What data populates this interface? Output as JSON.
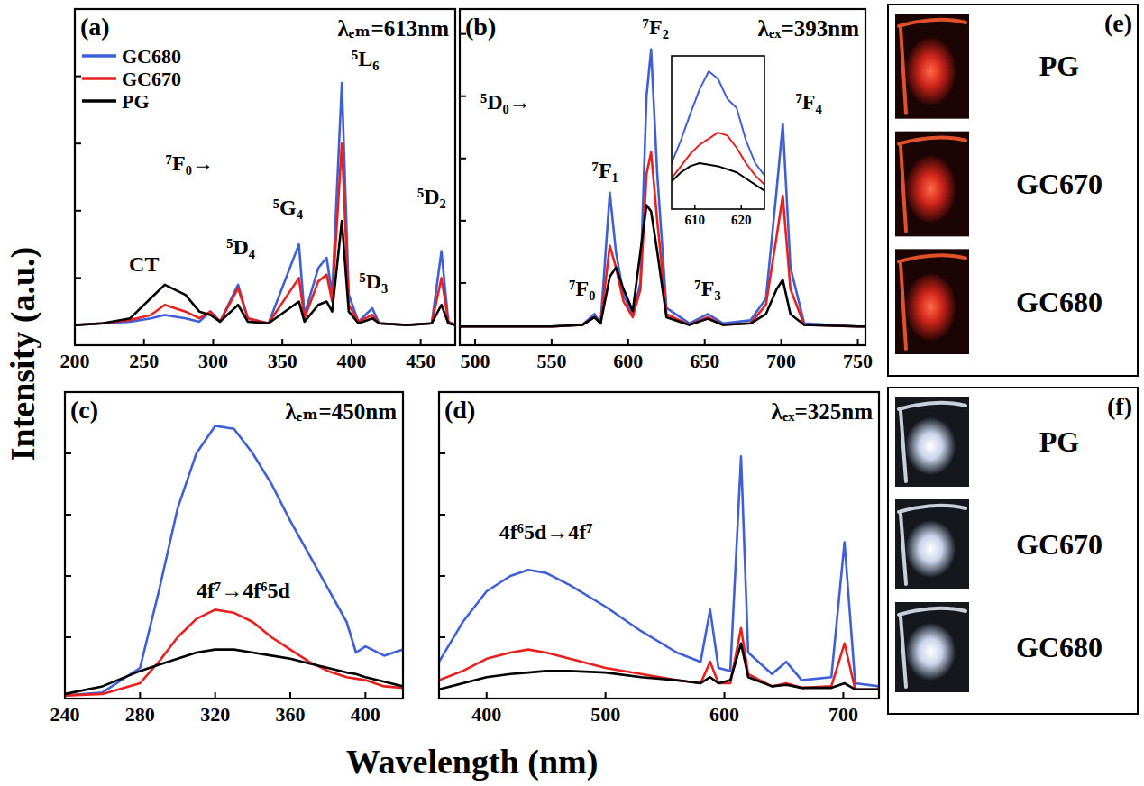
{
  "figure": {
    "ylabel": "Intensity (a.u.)",
    "xlabel": "Wavelength (nm)"
  },
  "chart_data": [
    {
      "type": "line",
      "title": "(a)",
      "subtitle": "λₑₘ=613nm",
      "x": [
        200,
        220,
        240,
        255,
        265,
        280,
        290,
        298,
        305,
        318,
        325,
        340,
        362,
        366,
        376,
        382,
        386,
        393,
        398,
        405,
        415,
        420,
        440,
        458,
        465,
        470,
        475
      ],
      "series": [
        {
          "name": "GC680",
          "color": "#3f5fd8",
          "values": [
            6,
            6.5,
            7,
            8,
            9,
            8,
            7,
            10,
            7,
            18,
            8,
            6.5,
            30,
            9,
            23,
            26,
            15,
            78,
            15,
            7,
            11,
            6.5,
            6,
            6.5,
            28,
            7,
            6
          ]
        },
        {
          "name": "GC670",
          "color": "#e8201e",
          "values": [
            6,
            6.5,
            7.5,
            9,
            12,
            10,
            8,
            10,
            7,
            17,
            8,
            6.5,
            20,
            8,
            19,
            21,
            13,
            60,
            12,
            7,
            9,
            6.5,
            6,
            6.5,
            20,
            7,
            6
          ]
        },
        {
          "name": "PG",
          "color": "#000000",
          "values": [
            6,
            6.5,
            8,
            14,
            18,
            15,
            10,
            9,
            7,
            12,
            7,
            6.5,
            13,
            7,
            12,
            13,
            10,
            37,
            10,
            6.5,
            8,
            6.5,
            6,
            6.5,
            12,
            6.5,
            6
          ]
        }
      ],
      "xlim": [
        200,
        475
      ],
      "xticks": [
        200,
        250,
        300,
        350,
        400,
        450
      ],
      "ylim": [
        0,
        100
      ],
      "yticks": [
        0,
        20,
        40,
        60,
        80,
        100
      ],
      "tick_labels": "x",
      "legend": "upper left",
      "annotations": [
        {
          "text": "CT",
          "x": 250,
          "y": 22
        },
        {
          "text": "⁷F₀→",
          "x": 283,
          "y": 52
        },
        {
          "text": "⁵D₄",
          "x": 320,
          "y": 27
        },
        {
          "text": "⁵G₄",
          "x": 354,
          "y": 39
        },
        {
          "text": "⁵L₆",
          "x": 410,
          "y": 83
        },
        {
          "text": "⁵D₃",
          "x": 416,
          "y": 17
        },
        {
          "text": "⁵D₂",
          "x": 458,
          "y": 42
        }
      ]
    },
    {
      "type": "line",
      "title": "(b)",
      "subtitle": "λₑₓ=393nm",
      "x": [
        490,
        500,
        550,
        570,
        578,
        582,
        588,
        592,
        597,
        603,
        608,
        612,
        615,
        619,
        625,
        640,
        652,
        662,
        680,
        690,
        697,
        701,
        706,
        715,
        750,
        755
      ],
      "series": [
        {
          "name": "GC680",
          "color": "#3f5fd8",
          "values": [
            6,
            6,
            6,
            6.5,
            10,
            7,
            49,
            30,
            16,
            10,
            20,
            80,
            95,
            55,
            12,
            7,
            10,
            7,
            8,
            15,
            50,
            71,
            25,
            7,
            6,
            6
          ]
        },
        {
          "name": "GC670",
          "color": "#e8201e",
          "values": [
            6,
            6,
            6,
            6.5,
            9,
            7,
            32,
            25,
            14,
            9,
            18,
            55,
            62,
            40,
            10,
            6.5,
            9,
            6.5,
            7,
            13,
            35,
            48,
            18,
            6.5,
            6,
            6
          ]
        },
        {
          "name": "PG",
          "color": "#000000",
          "values": [
            6,
            6,
            6,
            6.5,
            9,
            7,
            22,
            25,
            18,
            11,
            30,
            45,
            43,
            30,
            9,
            6.5,
            8.5,
            6.5,
            7,
            10,
            18,
            21,
            10,
            6.5,
            6,
            6
          ]
        }
      ],
      "xlim": [
        490,
        755
      ],
      "xticks": [
        500,
        550,
        600,
        650,
        700,
        750
      ],
      "ylim": [
        0,
        108
      ],
      "yticks": [
        0,
        20,
        40,
        60,
        80,
        100
      ],
      "tick_labels": "x",
      "annotations": [
        {
          "text": "⁵D₀→",
          "x": 520,
          "y": 76
        },
        {
          "text": "⁷F₀",
          "x": 570,
          "y": 16
        },
        {
          "text": "⁷F₁",
          "x": 585,
          "y": 54
        },
        {
          "text": "⁷F₂",
          "x": 618,
          "y": 100
        },
        {
          "text": "⁷F₃",
          "x": 652,
          "y": 16
        },
        {
          "text": "⁷F₄",
          "x": 718,
          "y": 76
        }
      ],
      "inset": {
        "x": [
          605,
          607,
          609,
          611,
          613,
          615,
          617,
          619,
          621,
          623,
          625
        ],
        "series": [
          {
            "name": "GC680",
            "color": "#3f5fd8",
            "values": [
              30,
              45,
              62,
              78,
              90,
              85,
              72,
              66,
              45,
              30,
              22
            ]
          },
          {
            "name": "GC670",
            "color": "#e8201e",
            "values": [
              20,
              28,
              36,
              42,
              46,
              50,
              48,
              40,
              30,
              22,
              16
            ]
          },
          {
            "name": "PG",
            "color": "#000000",
            "values": [
              18,
              24,
              28,
              30,
              29,
              28,
              26,
              24,
              20,
              16,
              12
            ]
          }
        ],
        "xlim": [
          605,
          625
        ],
        "xticks": [
          610,
          620
        ],
        "ylim": [
          0,
          100
        ],
        "tick_labels": "x"
      }
    },
    {
      "type": "line",
      "title": "(c)",
      "subtitle": "λₑₘ=450nm",
      "x": [
        240,
        260,
        280,
        290,
        300,
        310,
        320,
        330,
        340,
        350,
        360,
        370,
        380,
        390,
        395,
        400,
        410,
        420
      ],
      "series": [
        {
          "name": "GC680",
          "color": "#3f5fd8",
          "values": [
            1,
            2,
            10,
            35,
            62,
            80,
            89,
            88,
            80,
            70,
            58,
            47,
            36,
            25,
            15,
            17,
            14,
            16
          ]
        },
        {
          "name": "GC670",
          "color": "#e8201e",
          "values": [
            1,
            1.5,
            5,
            12,
            20,
            26,
            29,
            28,
            25,
            20,
            16,
            12,
            9,
            7,
            6.5,
            6,
            4,
            3.5
          ]
        },
        {
          "name": "PG",
          "color": "#000000",
          "values": [
            1.5,
            4,
            9,
            11,
            13,
            15,
            16,
            16,
            15,
            14,
            13,
            11.5,
            10,
            8.5,
            8,
            7,
            5.5,
            4
          ]
        }
      ],
      "xlim": [
        240,
        420
      ],
      "xticks": [
        240,
        280,
        320,
        360,
        400
      ],
      "ylim": [
        0,
        100
      ],
      "yticks": [
        0,
        20,
        40,
        60,
        80,
        100
      ],
      "tick_labels": "x",
      "annotations": [
        {
          "text": "4f⁷→4f⁶5d",
          "x": 335,
          "y": 33
        }
      ]
    },
    {
      "type": "line",
      "title": "(d)",
      "subtitle": "λₑₓ=325nm",
      "x": [
        360,
        380,
        400,
        420,
        435,
        450,
        470,
        500,
        530,
        560,
        580,
        588,
        595,
        605,
        614,
        620,
        640,
        652,
        665,
        690,
        701,
        710,
        730
      ],
      "series": [
        {
          "name": "GC680",
          "color": "#3f5fd8",
          "values": [
            12,
            25,
            35,
            40,
            42,
            41,
            37,
            30,
            22,
            15,
            12,
            29,
            10,
            9,
            79,
            15,
            8,
            12,
            6,
            7,
            51,
            5,
            4
          ]
        },
        {
          "name": "GC670",
          "color": "#e8201e",
          "values": [
            6,
            9,
            13,
            15,
            16,
            15,
            13,
            10,
            8,
            6,
            5,
            12,
            5,
            5,
            23,
            8,
            4,
            5,
            3.5,
            4,
            18,
            3,
            3
          ]
        },
        {
          "name": "PG",
          "color": "#000000",
          "values": [
            3,
            5,
            7,
            8,
            8.5,
            9,
            9,
            8.5,
            7,
            6,
            5,
            7,
            5,
            6,
            18,
            7,
            4,
            4.5,
            3.5,
            3.5,
            5,
            3,
            3
          ]
        }
      ],
      "xlim": [
        360,
        730
      ],
      "xticks": [
        400,
        500,
        600,
        700
      ],
      "ylim": [
        0,
        100
      ],
      "yticks": [
        0,
        20,
        40,
        60,
        80,
        100
      ],
      "tick_labels": "x",
      "annotations": [
        {
          "text": "4f⁶5d→4f⁷",
          "x": 450,
          "y": 52
        }
      ]
    }
  ],
  "photo_panels": [
    {
      "letter": "(e)",
      "samples": [
        "PG",
        "GC670",
        "GC680"
      ]
    },
    {
      "letter": "(f)",
      "samples": [
        "PG",
        "GC670",
        "GC680"
      ]
    }
  ]
}
